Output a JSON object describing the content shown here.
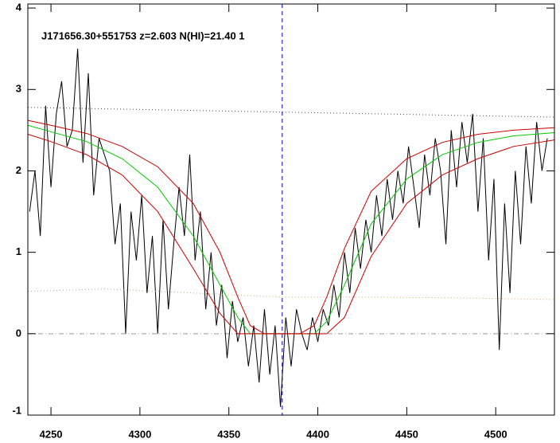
{
  "chart_data": {
    "type": "line",
    "title": "J171656.30+551753 z=2.603 N(HI)=21.40 1",
    "xlim": [
      4237,
      4533
    ],
    "ylim": [
      -1,
      4.05
    ],
    "xticks": [
      4250,
      4300,
      4350,
      4400,
      4450,
      4500
    ],
    "yticks": [
      -1,
      0,
      1,
      2,
      3,
      4
    ],
    "vline": 4380,
    "hline": 0,
    "series": [
      {
        "color": "#000000",
        "style": "solid",
        "x": [
          4238,
          4241,
          4244,
          4247,
          4250,
          4253,
          4256,
          4259,
          4262,
          4265,
          4268,
          4271,
          4274,
          4277,
          4280,
          4283,
          4286,
          4289,
          4292,
          4295,
          4298,
          4301,
          4304,
          4307,
          4310,
          4313,
          4316,
          4319,
          4322,
          4325,
          4328,
          4331,
          4334,
          4337,
          4340,
          4343,
          4346,
          4349,
          4352,
          4355,
          4358,
          4361,
          4364,
          4367,
          4370,
          4373,
          4376,
          4379,
          4382,
          4385,
          4388,
          4391,
          4394,
          4397,
          4400,
          4403,
          4406,
          4409,
          4412,
          4415,
          4418,
          4421,
          4424,
          4427,
          4430,
          4433,
          4436,
          4439,
          4442,
          4445,
          4448,
          4451,
          4454,
          4457,
          4460,
          4463,
          4466,
          4469,
          4472,
          4475,
          4478,
          4481,
          4484,
          4487,
          4490,
          4493,
          4496,
          4499,
          4502,
          4505,
          4508,
          4511,
          4514,
          4517,
          4520,
          4523,
          4526,
          4529
        ],
        "values": [
          1.5,
          2.0,
          1.2,
          2.8,
          1.8,
          2.7,
          3.1,
          2.3,
          2.5,
          3.5,
          2.1,
          3.2,
          1.7,
          2.4,
          2.2,
          2.0,
          1.1,
          1.6,
          0.0,
          1.5,
          0.9,
          1.7,
          0.5,
          1.2,
          0.0,
          1.4,
          0.3,
          1.1,
          1.8,
          1.2,
          2.2,
          0.9,
          1.5,
          0.3,
          1.0,
          0.1,
          0.6,
          -0.3,
          0.4,
          -0.1,
          0.2,
          -0.4,
          0.1,
          -0.6,
          0.3,
          -0.5,
          0.1,
          -0.9,
          0.2,
          -0.4,
          0.3,
          0.0,
          -0.2,
          0.2,
          -0.1,
          0.3,
          0.1,
          0.6,
          0.2,
          1.0,
          0.5,
          1.3,
          0.8,
          1.4,
          1.0,
          1.7,
          1.2,
          1.9,
          1.4,
          2.0,
          1.6,
          2.3,
          1.8,
          1.3,
          2.2,
          1.7,
          2.4,
          2.0,
          1.1,
          2.5,
          1.8,
          2.6,
          2.1,
          2.7,
          1.5,
          2.4,
          0.9,
          1.9,
          -0.2,
          1.6,
          0.5,
          2.0,
          1.1,
          2.3,
          1.6,
          2.6,
          2.0,
          2.4
        ]
      },
      {
        "color": "#9900cc",
        "style": "dotted",
        "x": [
          4237,
          4533
        ],
        "values": [
          2.78,
          2.66
        ]
      },
      {
        "color": "#ff9933",
        "style": "dotted",
        "x": [
          4237,
          4280,
          4330,
          4380,
          4430,
          4480,
          4533
        ],
        "values": [
          0.52,
          0.55,
          0.5,
          0.45,
          0.45,
          0.44,
          0.42
        ]
      },
      {
        "color": "#00cc00",
        "style": "solid",
        "x": [
          4237,
          4250,
          4270,
          4290,
          4310,
          4330,
          4345,
          4355,
          4362,
          4370,
          4380,
          4390,
          4398,
          4405,
          4415,
          4430,
          4450,
          4470,
          4490,
          4510,
          4533
        ],
        "values": [
          2.56,
          2.48,
          2.36,
          2.15,
          1.8,
          1.2,
          0.6,
          0.2,
          0.0,
          0,
          0,
          0,
          0.0,
          0.15,
          0.6,
          1.35,
          1.9,
          2.2,
          2.35,
          2.43,
          2.47
        ]
      },
      {
        "color": "#cc0000",
        "style": "solid",
        "x": [
          4237,
          4250,
          4270,
          4290,
          4310,
          4330,
          4345,
          4355,
          4362,
          4370,
          4380,
          4390,
          4398,
          4405,
          4415,
          4430,
          4450,
          4470,
          4490,
          4510,
          4533
        ],
        "values": [
          2.62,
          2.56,
          2.46,
          2.3,
          2.05,
          1.6,
          1.0,
          0.45,
          0.1,
          0,
          0,
          0,
          0.1,
          0.45,
          1.05,
          1.75,
          2.15,
          2.35,
          2.45,
          2.5,
          2.53
        ]
      },
      {
        "color": "#cc0000",
        "style": "solid",
        "x": [
          4237,
          4250,
          4270,
          4290,
          4310,
          4330,
          4345,
          4355,
          4362,
          4370,
          4380,
          4390,
          4398,
          4405,
          4415,
          4430,
          4450,
          4470,
          4490,
          4510,
          4533
        ],
        "values": [
          2.45,
          2.36,
          2.2,
          1.95,
          1.5,
          0.8,
          0.25,
          0.0,
          0,
          0,
          0,
          0,
          0,
          0,
          0.2,
          0.95,
          1.6,
          1.95,
          2.15,
          2.3,
          2.38
        ]
      }
    ]
  }
}
